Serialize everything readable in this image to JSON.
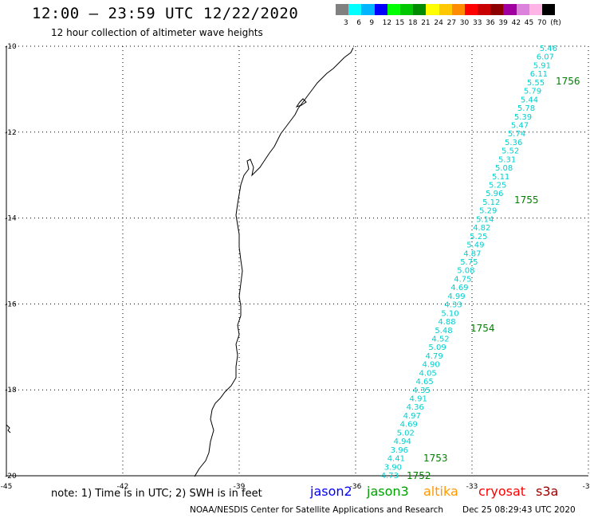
{
  "header": {
    "title": "12:00 – 23:59 UTC 12/22/2020",
    "subtitle": "12 hour collection of altimeter wave heights"
  },
  "legend": {
    "colors": [
      "#808080",
      "#00ffff",
      "#00b4ff",
      "#0000ff",
      "#00ff00",
      "#00c800",
      "#008c00",
      "#ffff00",
      "#ffc800",
      "#ff8c00",
      "#ff0000",
      "#c80000",
      "#8c0000",
      "#a000a0",
      "#dc82dc",
      "#ffb4e6",
      "#000000"
    ],
    "labels": [
      "3",
      "6",
      "9",
      "12",
      "15",
      "18",
      "21",
      "24",
      "27",
      "30",
      "33",
      "36",
      "39",
      "42",
      "45",
      "70",
      "(ft)"
    ]
  },
  "map": {
    "lon_ticks": [
      "-45",
      "-42",
      "-39",
      "-36",
      "-33",
      "-30"
    ],
    "lat_ticks": [
      "-10",
      "-12",
      "-14",
      "-16",
      "-18",
      "-20"
    ],
    "track_color": "#00d0d0",
    "pass_color": "#008000",
    "wave_heights": [
      "5.46",
      "6.07",
      "5.91",
      "6.11",
      "5.55",
      "5.79",
      "5.44",
      "5.78",
      "5.39",
      "5.47",
      "5.74",
      "5.36",
      "5.52",
      "5.31",
      "5.08",
      "5.11",
      "5.25",
      "5.96",
      "5.12",
      "5.29",
      "5.14",
      "4.82",
      "5.25",
      "5.49",
      "4.87",
      "5.75",
      "5.08",
      "4.75",
      "4.69",
      "4.99",
      "4.33",
      "5.10",
      "4.88",
      "5.48",
      "4.52",
      "5.09",
      "4.79",
      "4.90",
      "4.05",
      "4.65",
      "4.35",
      "4.91",
      "4.36",
      "4.97",
      "4.69",
      "5.02",
      "4.94",
      "3.96",
      "4.41",
      "3.90",
      "4.73"
    ],
    "pass_times": [
      "1756",
      "1755",
      "1754",
      "1753",
      "1752"
    ]
  },
  "footer": {
    "note": "note: 1) Time is in UTC; 2) SWH is in feet",
    "satellites": [
      {
        "name": "jason2",
        "color": "#0000ff"
      },
      {
        "name": "jason3",
        "color": "#00a000"
      },
      {
        "name": "altika",
        "color": "#ff9900"
      },
      {
        "name": "cryosat",
        "color": "#ff0000"
      },
      {
        "name": "s3a",
        "color": "#a00000"
      }
    ],
    "credit": "NOAA/NESDIS Center for Satellite Applications and Research",
    "timestamp": "Dec 25 08:29:43 UTC 2020"
  }
}
